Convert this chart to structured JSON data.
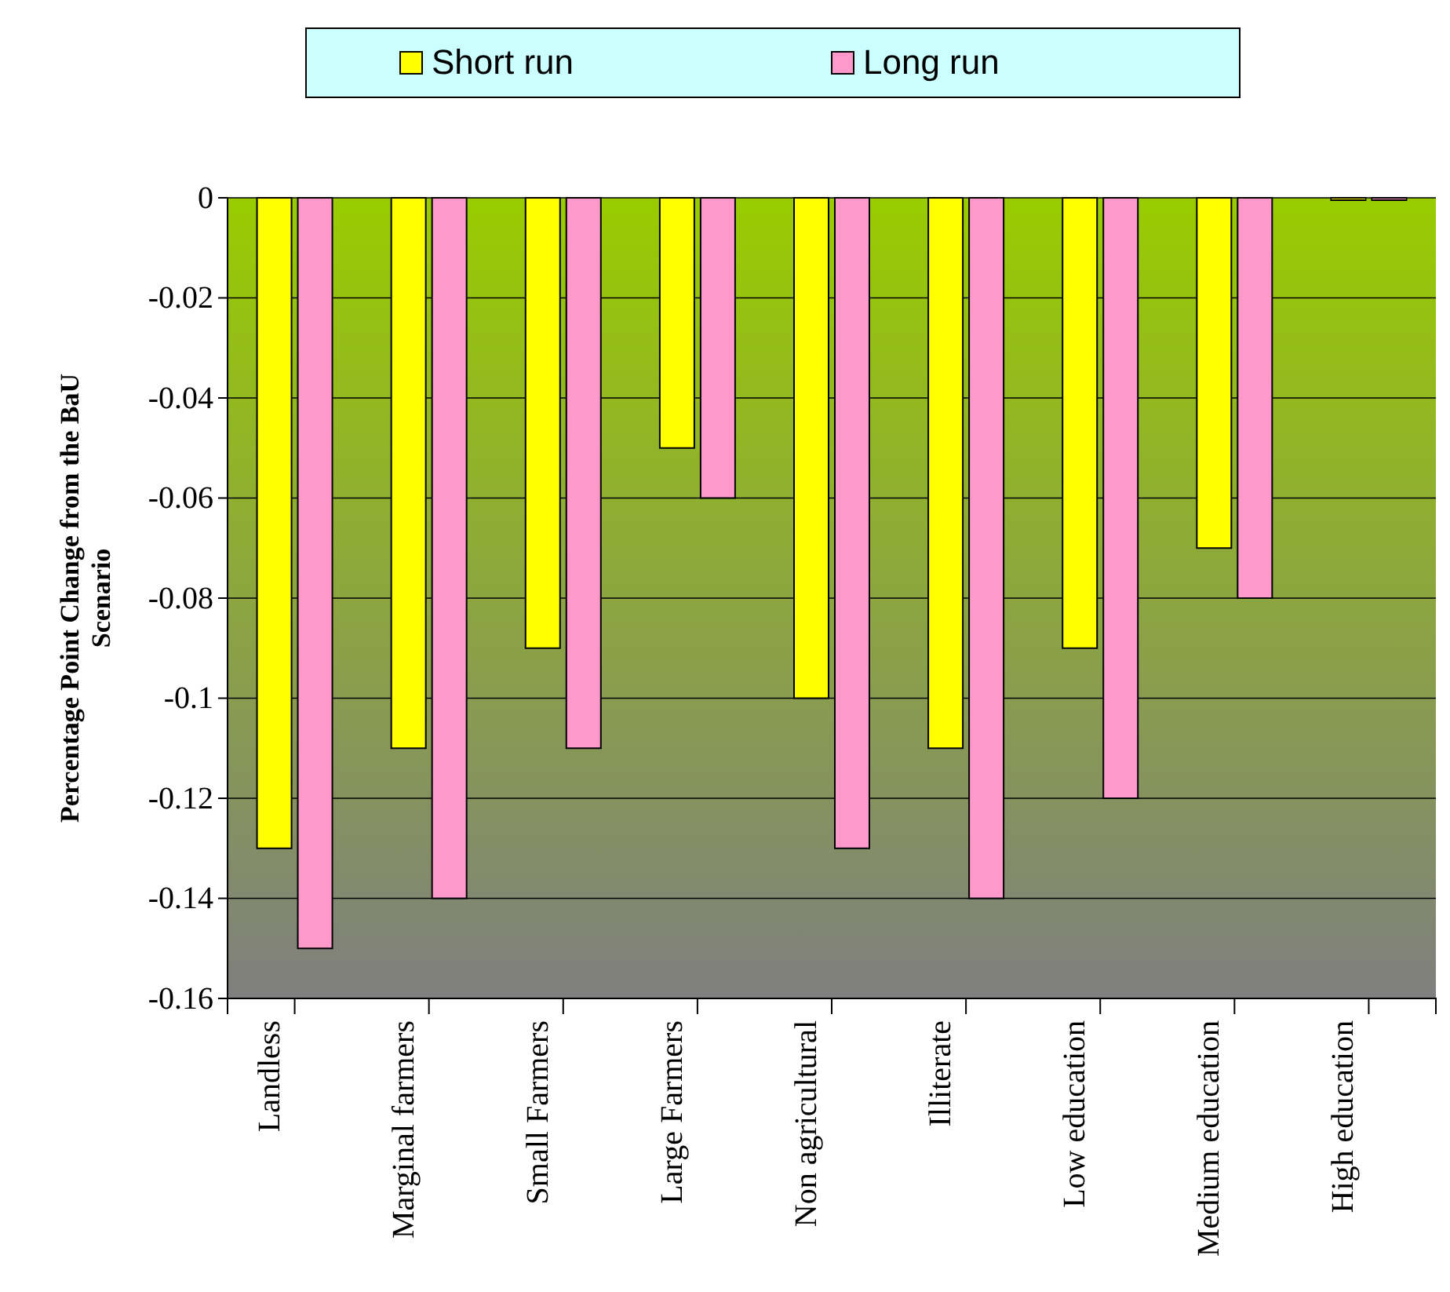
{
  "chart_data": {
    "type": "bar",
    "ylabel": "Percentage Point Change from the BaU Scenario",
    "categories": [
      "Landless",
      "Marginal farmers",
      "Small Farmers",
      "Large Farmers",
      "Non agricultural",
      "Illiterate",
      "Low education",
      "Medium education",
      "High education"
    ],
    "series": [
      {
        "name": "Short run",
        "color": "#ffff00",
        "values": [
          -0.13,
          -0.11,
          -0.09,
          -0.05,
          -0.1,
          -0.11,
          -0.09,
          -0.07,
          0
        ]
      },
      {
        "name": "Long run",
        "color": "#ff99cc",
        "values": [
          -0.15,
          -0.14,
          -0.11,
          -0.06,
          -0.13,
          -0.14,
          -0.12,
          -0.08,
          0
        ]
      }
    ],
    "ylim": [
      -0.16,
      0
    ],
    "yticks": [
      0,
      -0.02,
      -0.04,
      -0.06,
      -0.08,
      -0.1,
      -0.12,
      -0.14,
      -0.16
    ],
    "grid": "y",
    "legend": "top"
  }
}
